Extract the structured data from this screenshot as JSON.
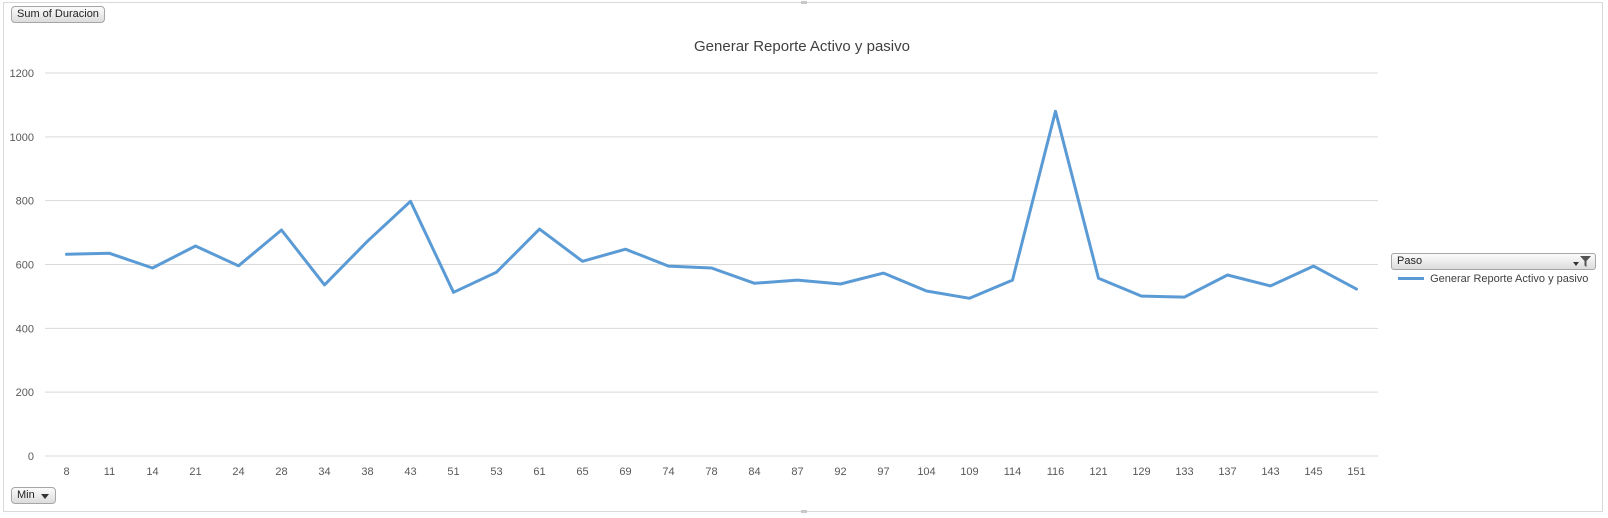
{
  "pivot": {
    "value_field": "Sum of Duracion",
    "axis_field": "Min",
    "legend_field": "Paso"
  },
  "icons": {
    "axis_dropdown": "chevron-down-icon",
    "legend_filter": "filter-icon"
  },
  "colors": {
    "series": "#5b9bd5",
    "gridline": "#d9d9d9",
    "axis_text": "#595959",
    "title_text": "#404040"
  },
  "chart_data": {
    "type": "line",
    "title": "Generar Reporte Activo y pasivo",
    "xlabel": "",
    "ylabel": "",
    "ylim": [
      0,
      1200
    ],
    "yticks": [
      0,
      200,
      400,
      600,
      800,
      1000,
      1200
    ],
    "grid": true,
    "legend_position": "right",
    "categories": [
      "8",
      "11",
      "14",
      "21",
      "24",
      "28",
      "34",
      "38",
      "43",
      "51",
      "53",
      "61",
      "65",
      "69",
      "74",
      "78",
      "84",
      "87",
      "92",
      "97",
      "104",
      "109",
      "114",
      "116",
      "121",
      "129",
      "133",
      "137",
      "143",
      "145",
      "151"
    ],
    "series": [
      {
        "name": "Generar Reporte Activo y pasivo",
        "values": [
          632,
          635,
          589,
          658,
          596,
          708,
          536,
          673,
          798,
          513,
          576,
          711,
          610,
          648,
          595,
          589,
          541,
          551,
          539,
          573,
          517,
          494,
          551,
          1080,
          557,
          501,
          498,
          567,
          533,
          595,
          523
        ]
      }
    ]
  }
}
